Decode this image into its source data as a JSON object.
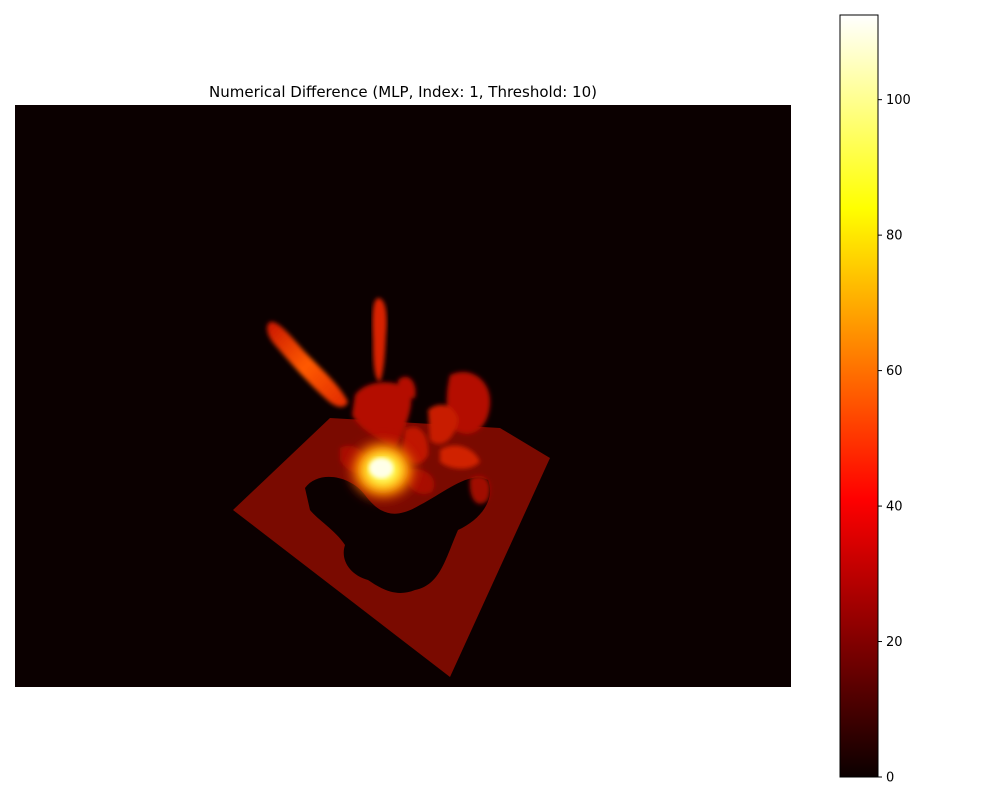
{
  "chart_data": {
    "type": "heatmap",
    "title": "Numerical Difference (MLP, Index: 1, Threshold: 10)",
    "axes_visible": false,
    "colormap": "hot",
    "colorbar": {
      "vmin": 0,
      "vmax": 112.5,
      "ticks": [
        0,
        20,
        40,
        60,
        80,
        100
      ],
      "tick_labels": [
        "0",
        "20",
        "40",
        "60",
        "80",
        "100"
      ],
      "placement": "right"
    },
    "content_description_values": {
      "background_value": 0,
      "plane_region_value": 18,
      "peak_value": 112
    }
  },
  "colors": {
    "background": "#0b0000",
    "figure_bg": "#ffffff"
  }
}
